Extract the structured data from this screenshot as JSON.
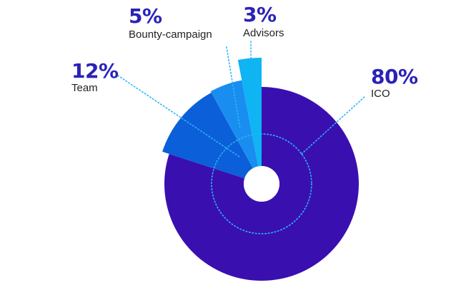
{
  "colors": {
    "percent_text": "#2a22b8",
    "label_text": "#222222",
    "leader_line": "#29b6f6",
    "hole": "#ffffff"
  },
  "chart_data": {
    "type": "pie",
    "style": "exploded donut with varying slice radii",
    "slices": [
      {
        "label": "ICO",
        "percent_text": "80%",
        "value": 80,
        "color": "#3a0fb0"
      },
      {
        "label": "Team",
        "percent_text": "12%",
        "value": 12,
        "color": "#0b5fd9"
      },
      {
        "label": "Bounty-campaign",
        "percent_text": "5%",
        "value": 5,
        "color": "#1a8ef0"
      },
      {
        "label": "Advisors",
        "percent_text": "3%",
        "value": 3,
        "color": "#0fb4f3"
      }
    ],
    "legend": "none",
    "grid": false
  }
}
